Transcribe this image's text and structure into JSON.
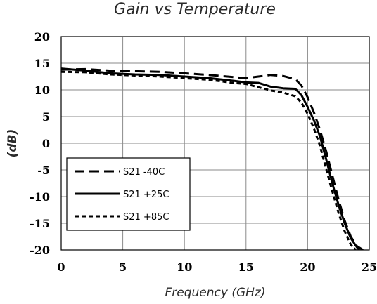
{
  "chart_data": {
    "type": "line",
    "title": "Gain vs Temperature",
    "xlabel": "Frequency (GHz)",
    "ylabel": "(dB)",
    "xlim": [
      0,
      25
    ],
    "ylim": [
      -20,
      20
    ],
    "xticks": [
      0,
      5,
      10,
      15,
      20,
      25
    ],
    "yticks": [
      20,
      15,
      10,
      5,
      0,
      -5,
      -10,
      -15,
      -20
    ],
    "grid": true,
    "legend_position": "bottom-left",
    "series": [
      {
        "name": "S21 -40C",
        "dash": "long-dash",
        "color": "#000000",
        "x": [
          0,
          2,
          4,
          6,
          8,
          10,
          12,
          14,
          15,
          16,
          17,
          18,
          19,
          19.5,
          20,
          20.5,
          21,
          21.5,
          22,
          22.5,
          23,
          23.5,
          24,
          24.5
        ],
        "y": [
          13.8,
          13.9,
          13.6,
          13.5,
          13.4,
          13.1,
          12.8,
          12.4,
          12.2,
          12.5,
          12.8,
          12.6,
          12.0,
          10.8,
          8.6,
          5.8,
          2.5,
          -1.5,
          -6.0,
          -10.5,
          -14.5,
          -17.5,
          -19.3,
          -20
        ]
      },
      {
        "name": "S21 +25C",
        "dash": "solid",
        "color": "#000000",
        "x": [
          0,
          2,
          4,
          6,
          8,
          10,
          12,
          14,
          15,
          16,
          17,
          18,
          19,
          19.5,
          20,
          20.5,
          21,
          21.5,
          22,
          22.5,
          23,
          23.5,
          24,
          24.2
        ],
        "y": [
          14.0,
          13.6,
          13.1,
          12.9,
          12.8,
          12.5,
          12.2,
          11.7,
          11.4,
          11.3,
          10.6,
          10.3,
          10.2,
          9.0,
          6.8,
          4.3,
          1.3,
          -3.0,
          -7.5,
          -11.5,
          -15.0,
          -17.8,
          -19.5,
          -20
        ]
      },
      {
        "name": "S21 +85C",
        "dash": "short-dash",
        "color": "#000000",
        "x": [
          0,
          2,
          4,
          6,
          8,
          10,
          12,
          14,
          15,
          16,
          17,
          18,
          19,
          19.5,
          20,
          20.5,
          21,
          21.5,
          22,
          22.5,
          23,
          23.5,
          23.9
        ],
        "y": [
          13.4,
          13.3,
          12.9,
          12.7,
          12.5,
          12.2,
          11.9,
          11.3,
          11.1,
          10.5,
          9.9,
          9.5,
          8.8,
          7.6,
          5.5,
          2.8,
          -0.5,
          -4.8,
          -9.0,
          -13.0,
          -16.5,
          -19.0,
          -20
        ]
      }
    ]
  }
}
